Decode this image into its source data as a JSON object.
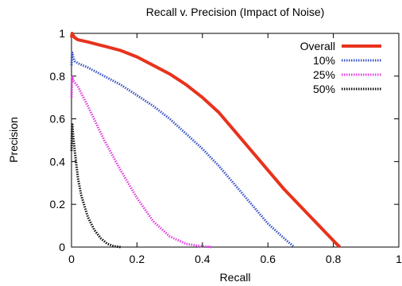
{
  "chart_data": {
    "type": "line",
    "title": "Recall v. Precision (Impact of Noise)",
    "xlabel": "Recall",
    "ylabel": "Precision",
    "xlim": [
      0,
      1
    ],
    "ylim": [
      0,
      1
    ],
    "xticks": [
      "0",
      "0.2",
      "0.4",
      "0.6",
      "0.8",
      "1"
    ],
    "yticks": [
      "0",
      "0.2",
      "0.4",
      "0.6",
      "0.8",
      "1"
    ],
    "grid": false,
    "legend_position": "top-right",
    "series": [
      {
        "name": "Overall",
        "color": "#e8321c",
        "style": "solid",
        "x": [
          0.0,
          0.002,
          0.005,
          0.01,
          0.02,
          0.05,
          0.1,
          0.15,
          0.2,
          0.25,
          0.3,
          0.35,
          0.4,
          0.45,
          0.5,
          0.55,
          0.6,
          0.65,
          0.7,
          0.75,
          0.8,
          0.82
        ],
        "y": [
          0.98,
          1.0,
          0.99,
          0.98,
          0.97,
          0.96,
          0.94,
          0.92,
          0.89,
          0.85,
          0.81,
          0.76,
          0.7,
          0.63,
          0.54,
          0.45,
          0.36,
          0.27,
          0.19,
          0.11,
          0.03,
          0.0
        ]
      },
      {
        "name": "10%",
        "color": "#3a55c8",
        "style": "dotted",
        "x": [
          0.0,
          0.002,
          0.005,
          0.01,
          0.02,
          0.05,
          0.1,
          0.15,
          0.2,
          0.25,
          0.3,
          0.35,
          0.4,
          0.45,
          0.5,
          0.55,
          0.6,
          0.65,
          0.68
        ],
        "y": [
          0.85,
          0.91,
          0.89,
          0.87,
          0.86,
          0.84,
          0.8,
          0.76,
          0.71,
          0.66,
          0.6,
          0.53,
          0.46,
          0.38,
          0.29,
          0.2,
          0.11,
          0.04,
          0.0
        ]
      },
      {
        "name": "25%",
        "color": "#e040e0",
        "style": "dotted",
        "x": [
          0.0,
          0.002,
          0.005,
          0.01,
          0.02,
          0.05,
          0.1,
          0.15,
          0.2,
          0.25,
          0.3,
          0.35,
          0.4,
          0.43
        ],
        "y": [
          0.7,
          0.8,
          0.78,
          0.77,
          0.75,
          0.66,
          0.5,
          0.36,
          0.23,
          0.12,
          0.05,
          0.015,
          0.003,
          0.0
        ]
      },
      {
        "name": "50%",
        "color": "#111111",
        "style": "dotted",
        "x": [
          0.0,
          0.002,
          0.005,
          0.01,
          0.02,
          0.03,
          0.05,
          0.07,
          0.09,
          0.11,
          0.13,
          0.15
        ],
        "y": [
          0.45,
          0.58,
          0.52,
          0.45,
          0.32,
          0.24,
          0.14,
          0.08,
          0.04,
          0.015,
          0.004,
          0.0
        ]
      }
    ]
  }
}
